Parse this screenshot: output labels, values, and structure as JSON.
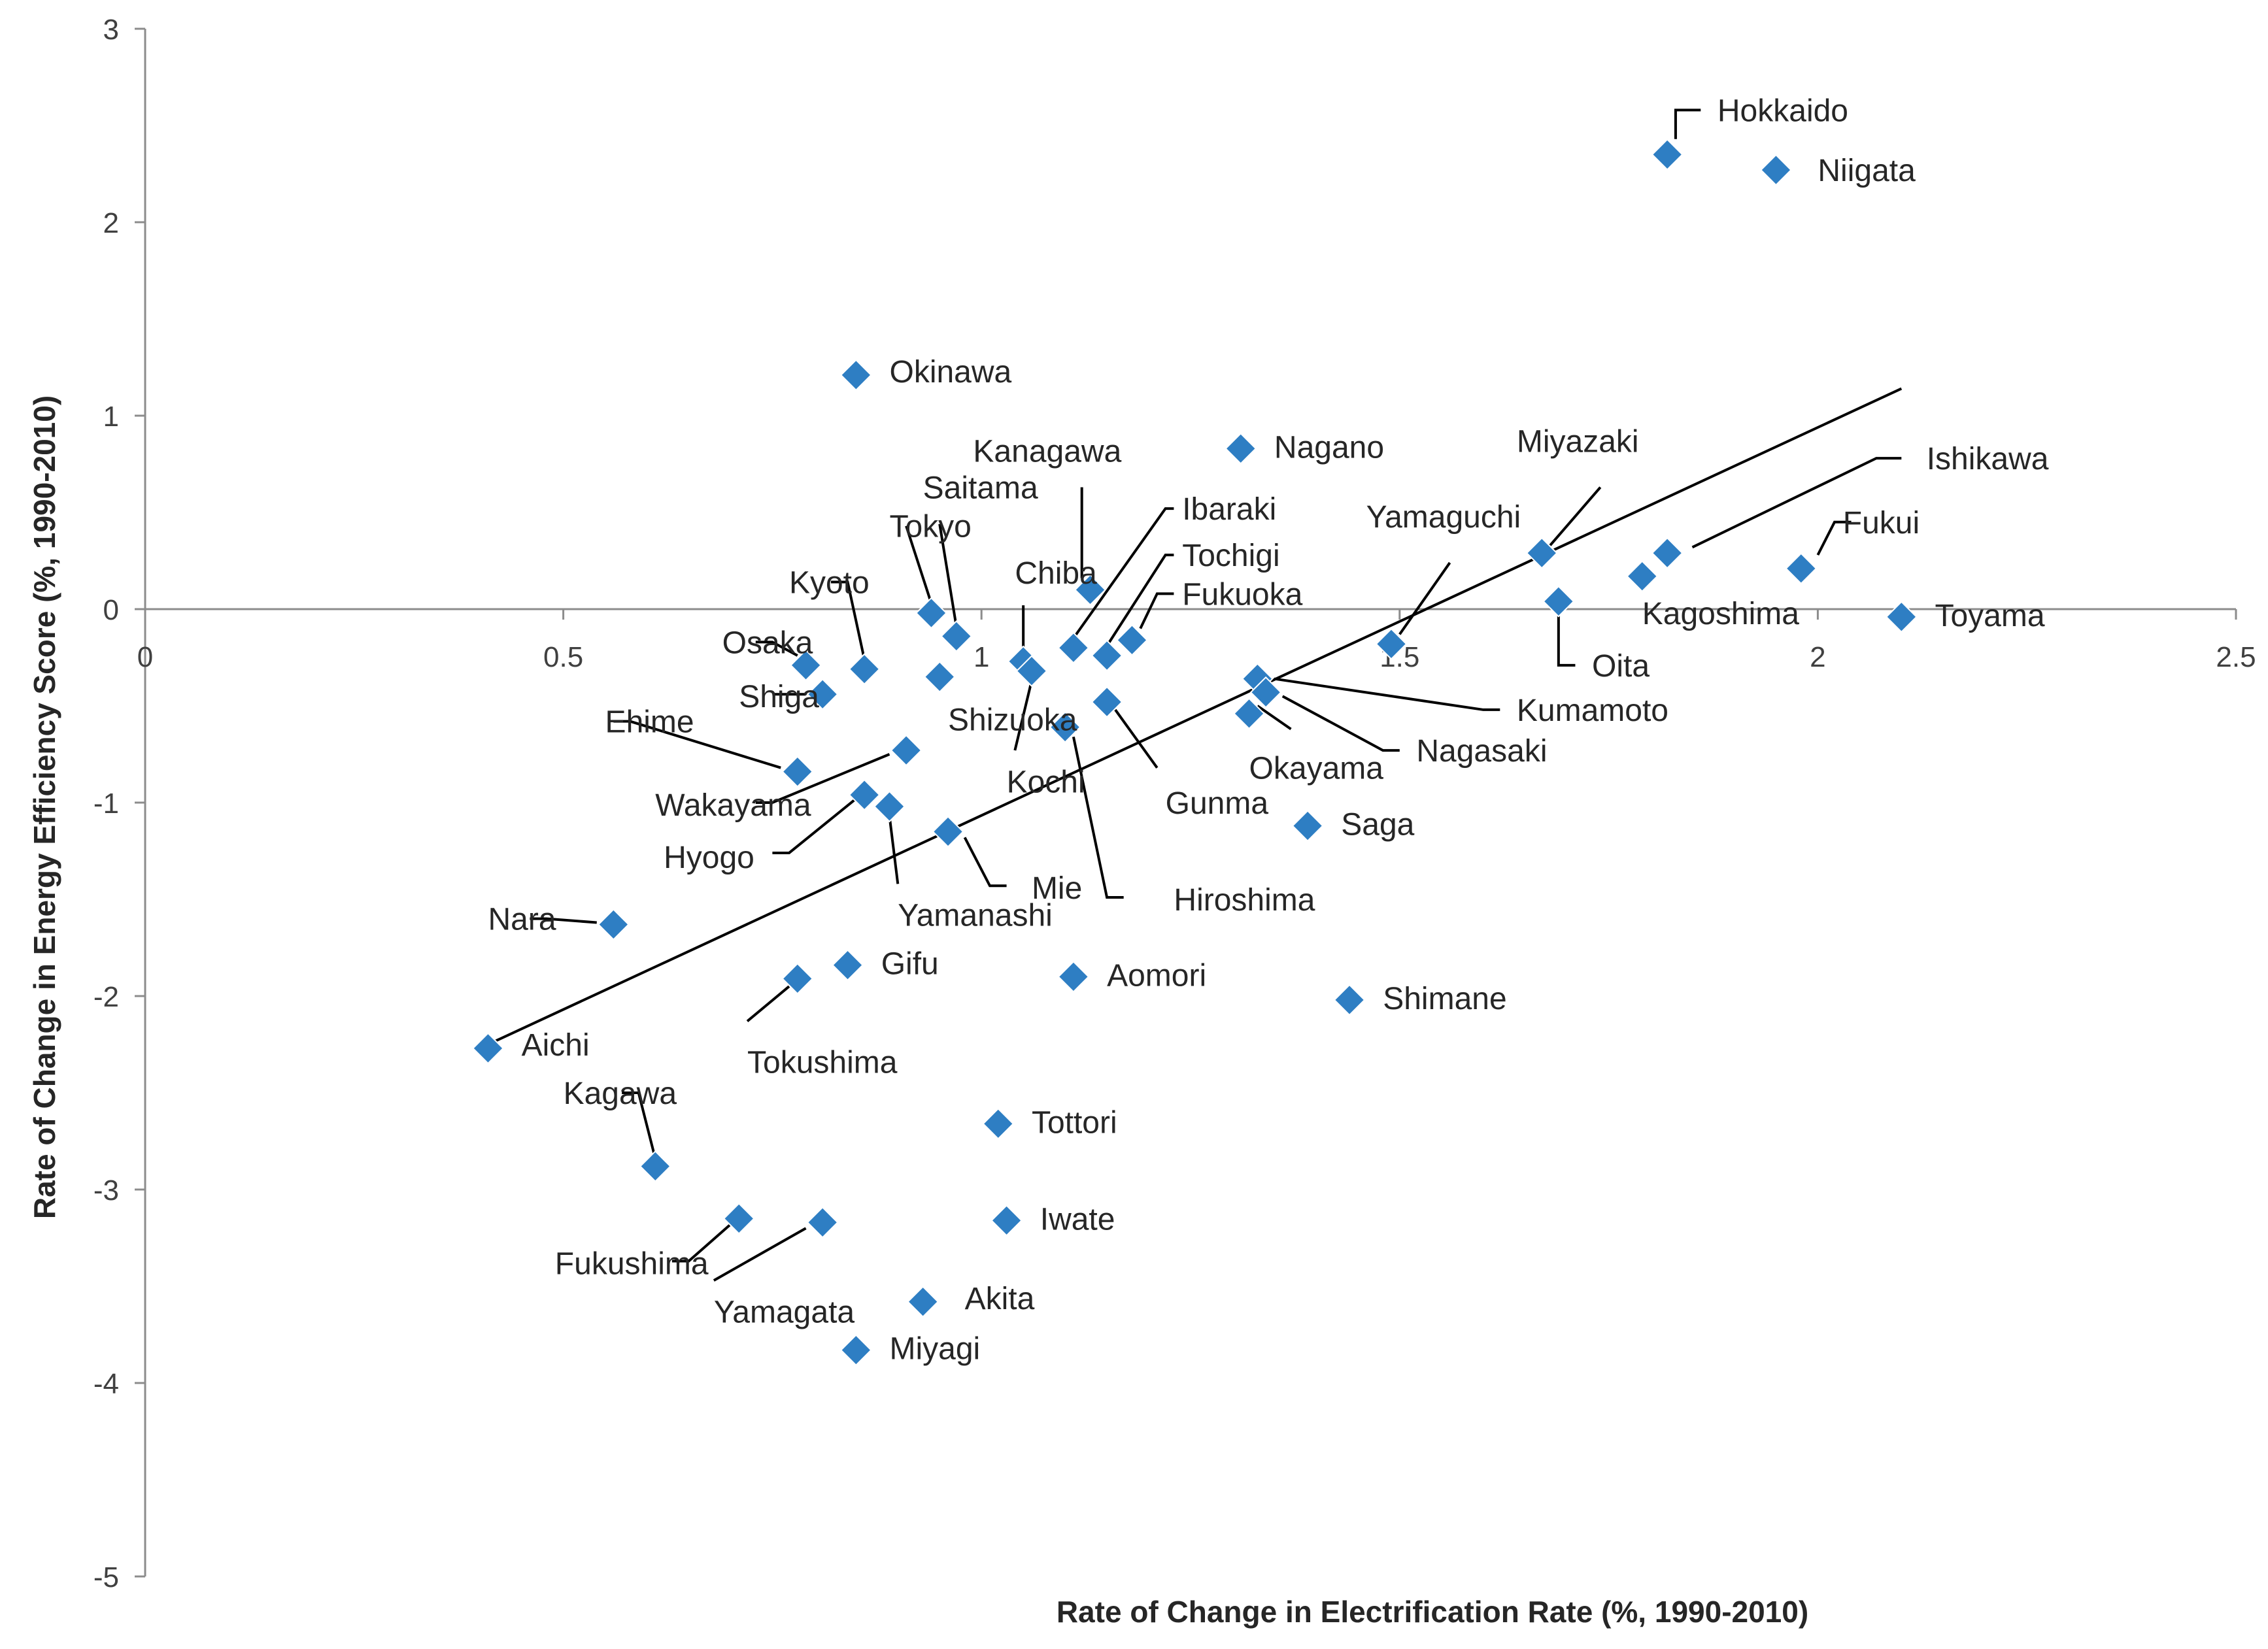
{
  "chart_data": {
    "type": "scatter",
    "title": "",
    "xlabel": "Rate of Change in Electrification Rate (%, 1990-2010)",
    "ylabel": "Rate of Change in Energy Efficiency Score (%, 1990-2010)",
    "xlim": [
      0,
      2.5
    ],
    "ylim": [
      -5,
      3
    ],
    "x_ticks": [
      {
        "value": 0,
        "label": "0"
      },
      {
        "value": 0.5,
        "label": "0.5"
      },
      {
        "value": 1,
        "label": "1"
      },
      {
        "value": 1.5,
        "label": "1.5"
      },
      {
        "value": 2,
        "label": "2"
      },
      {
        "value": 2.5,
        "label": "2.5"
      }
    ],
    "y_ticks": [
      {
        "value": 3,
        "label": "3"
      },
      {
        "value": 2,
        "label": "2"
      },
      {
        "value": 1,
        "label": "1"
      },
      {
        "value": 0,
        "label": "0"
      },
      {
        "value": -1,
        "label": "-1"
      },
      {
        "value": -2,
        "label": "-2"
      },
      {
        "value": -3,
        "label": "-3"
      },
      {
        "value": -4,
        "label": "-4"
      },
      {
        "value": -5,
        "label": "-5"
      }
    ],
    "marker_color": "#2E7EC3",
    "trendline": {
      "x": [
        0.41,
        2.1
      ],
      "y": [
        -2.25,
        1.14
      ]
    },
    "points": [
      {
        "name": "Hokkaido",
        "x": 1.82,
        "y": 2.35,
        "lx": 1.88,
        "ly": 2.58,
        "leader": [
          [
            1.83,
            2.43
          ],
          [
            1.83,
            2.58
          ],
          [
            1.86,
            2.58
          ]
        ]
      },
      {
        "name": "Niigata",
        "x": 1.95,
        "y": 2.27,
        "lx": 2.0,
        "ly": 2.27
      },
      {
        "name": "Okinawa",
        "x": 0.85,
        "y": 1.21,
        "lx": 0.89,
        "ly": 1.23
      },
      {
        "name": "Nagano",
        "x": 1.31,
        "y": 0.83,
        "lx": 1.35,
        "ly": 0.84
      },
      {
        "name": "Kanagawa",
        "x": 1.13,
        "y": 0.1,
        "lx": 0.99,
        "ly": 0.82,
        "leader": [
          [
            1.12,
            0.16
          ],
          [
            1.12,
            0.63
          ]
        ]
      },
      {
        "name": "Miyazaki",
        "x": 1.67,
        "y": 0.29,
        "lx": 1.64,
        "ly": 0.87,
        "leader": [
          [
            1.68,
            0.33
          ],
          [
            1.74,
            0.63
          ]
        ]
      },
      {
        "name": "Ishikawa",
        "x": 1.82,
        "y": 0.29,
        "lx": 2.13,
        "ly": 0.78,
        "leader": [
          [
            1.85,
            0.32
          ],
          [
            2.07,
            0.78
          ],
          [
            2.1,
            0.78
          ]
        ]
      },
      {
        "name": "Fukui",
        "x": 1.98,
        "y": 0.21,
        "lx": 2.03,
        "ly": 0.45,
        "leader": [
          [
            2.0,
            0.28
          ],
          [
            2.02,
            0.45
          ],
          [
            2.04,
            0.45
          ]
        ]
      },
      {
        "name": "Kagoshima",
        "x": 1.79,
        "y": 0.17,
        "lx": 1.79,
        "ly": -0.02
      },
      {
        "name": "Toyama",
        "x": 2.1,
        "y": -0.04,
        "lx": 2.14,
        "ly": -0.03
      },
      {
        "name": "Oita",
        "x": 1.69,
        "y": 0.04,
        "lx": 1.73,
        "ly": -0.29,
        "leader": [
          [
            1.69,
            0.0
          ],
          [
            1.69,
            -0.29
          ],
          [
            1.71,
            -0.29
          ]
        ]
      },
      {
        "name": "Yamaguchi",
        "x": 1.49,
        "y": -0.18,
        "lx": 1.46,
        "ly": 0.48,
        "leader": [
          [
            1.5,
            -0.13
          ],
          [
            1.56,
            0.24
          ]
        ]
      },
      {
        "name": "Ibaraki",
        "x": 1.11,
        "y": -0.2,
        "lx": 1.24,
        "ly": 0.52,
        "leader": [
          [
            1.11,
            -0.15
          ],
          [
            1.22,
            0.52
          ],
          [
            1.23,
            0.52
          ]
        ]
      },
      {
        "name": "Tochigi",
        "x": 1.15,
        "y": -0.24,
        "lx": 1.24,
        "ly": 0.28,
        "leader": [
          [
            1.15,
            -0.19
          ],
          [
            1.22,
            0.28
          ],
          [
            1.23,
            0.28
          ]
        ]
      },
      {
        "name": "Fukuoka",
        "x": 1.18,
        "y": -0.16,
        "lx": 1.24,
        "ly": 0.08,
        "leader": [
          [
            1.19,
            -0.1
          ],
          [
            1.21,
            0.08
          ],
          [
            1.23,
            0.08
          ]
        ]
      },
      {
        "name": "Chiba",
        "x": 1.05,
        "y": -0.27,
        "lx": 1.04,
        "ly": 0.19,
        "leader": [
          [
            1.05,
            -0.22
          ],
          [
            1.05,
            0.02
          ]
        ]
      },
      {
        "name": "Saitama",
        "x": 0.97,
        "y": -0.14,
        "lx": 0.93,
        "ly": 0.63,
        "leader": [
          [
            0.97,
            -0.09
          ],
          [
            0.95,
            0.44
          ]
        ]
      },
      {
        "name": "Tokyo",
        "x": 0.94,
        "y": -0.02,
        "lx": 0.89,
        "ly": 0.43,
        "leader": [
          [
            0.94,
            0.03
          ],
          [
            0.91,
            0.43
          ]
        ]
      },
      {
        "name": "Kyoto",
        "x": 0.86,
        "y": -0.31,
        "lx": 0.77,
        "ly": 0.14,
        "leader": [
          [
            0.86,
            -0.26
          ],
          [
            0.84,
            0.14
          ],
          [
            0.82,
            0.14
          ]
        ]
      },
      {
        "name": "Osaka",
        "x": 0.79,
        "y": -0.29,
        "lx": 0.69,
        "ly": -0.17,
        "leader": [
          [
            0.78,
            -0.24
          ],
          [
            0.75,
            -0.17
          ],
          [
            0.73,
            -0.17
          ]
        ]
      },
      {
        "name": "Shiga",
        "x": 0.81,
        "y": -0.44,
        "lx": 0.71,
        "ly": -0.45,
        "leader": [
          [
            0.79,
            -0.44
          ],
          [
            0.75,
            -0.44
          ]
        ]
      },
      {
        "name": "Shizuoka",
        "x": 0.95,
        "y": -0.35,
        "lx": 0.96,
        "ly": -0.57
      },
      {
        "name": "Kochi",
        "x": 1.06,
        "y": -0.32,
        "lx": 1.03,
        "ly": -0.89,
        "leader": [
          [
            1.06,
            -0.37
          ],
          [
            1.04,
            -0.73
          ]
        ]
      },
      {
        "name": "Ehime",
        "x": 0.78,
        "y": -0.84,
        "lx": 0.55,
        "ly": -0.58,
        "leader": [
          [
            0.76,
            -0.82
          ],
          [
            0.58,
            -0.58
          ],
          [
            0.56,
            -0.58
          ]
        ]
      },
      {
        "name": "Wakayama",
        "x": 0.91,
        "y": -0.73,
        "lx": 0.61,
        "ly": -1.01,
        "leader": [
          [
            0.89,
            -0.75
          ],
          [
            0.75,
            -1.0
          ],
          [
            0.73,
            -1.0
          ]
        ]
      },
      {
        "name": "Hyogo",
        "x": 0.86,
        "y": -0.96,
        "lx": 0.62,
        "ly": -1.28,
        "leader": [
          [
            0.85,
            -0.98
          ],
          [
            0.77,
            -1.26
          ],
          [
            0.75,
            -1.26
          ]
        ]
      },
      {
        "name": "Yamanashi",
        "x": 0.89,
        "y": -1.02,
        "lx": 0.9,
        "ly": -1.58,
        "leader": [
          [
            0.89,
            -1.07
          ],
          [
            0.9,
            -1.42
          ]
        ]
      },
      {
        "name": "Mie",
        "x": 0.96,
        "y": -1.15,
        "lx": 1.06,
        "ly": -1.44,
        "leader": [
          [
            0.98,
            -1.18
          ],
          [
            1.01,
            -1.43
          ],
          [
            1.03,
            -1.43
          ]
        ]
      },
      {
        "name": "Hiroshima",
        "x": 1.1,
        "y": -0.61,
        "lx": 1.23,
        "ly": -1.5,
        "leader": [
          [
            1.11,
            -0.66
          ],
          [
            1.15,
            -1.49
          ],
          [
            1.17,
            -1.49
          ]
        ]
      },
      {
        "name": "Gunma",
        "x": 1.15,
        "y": -0.48,
        "lx": 1.22,
        "ly": -1.0,
        "leader": [
          [
            1.16,
            -0.52
          ],
          [
            1.21,
            -0.82
          ]
        ]
      },
      {
        "name": "Kumamoto",
        "x": 1.33,
        "y": -0.36,
        "lx": 1.64,
        "ly": -0.52,
        "leader": [
          [
            1.35,
            -0.36
          ],
          [
            1.6,
            -0.52
          ],
          [
            1.62,
            -0.52
          ]
        ]
      },
      {
        "name": "Nagasaki",
        "x": 1.34,
        "y": -0.43,
        "lx": 1.52,
        "ly": -0.73,
        "leader": [
          [
            1.36,
            -0.45
          ],
          [
            1.48,
            -0.73
          ],
          [
            1.5,
            -0.73
          ]
        ]
      },
      {
        "name": "Okayama",
        "x": 1.32,
        "y": -0.54,
        "lx": 1.32,
        "ly": -0.82,
        "leader": [
          [
            1.33,
            -0.5
          ],
          [
            1.37,
            -0.62
          ]
        ]
      },
      {
        "name": "Saga",
        "x": 1.39,
        "y": -1.12,
        "lx": 1.43,
        "ly": -1.11
      },
      {
        "name": "Nara",
        "x": 0.56,
        "y": -1.63,
        "lx": 0.41,
        "ly": -1.6,
        "leader": [
          [
            0.54,
            -1.62
          ],
          [
            0.48,
            -1.6
          ],
          [
            0.46,
            -1.6
          ]
        ]
      },
      {
        "name": "Gifu",
        "x": 0.84,
        "y": -1.84,
        "lx": 0.88,
        "ly": -1.83
      },
      {
        "name": "Aomori",
        "x": 1.11,
        "y": -1.9,
        "lx": 1.15,
        "ly": -1.89
      },
      {
        "name": "Shimane",
        "x": 1.44,
        "y": -2.02,
        "lx": 1.48,
        "ly": -2.01
      },
      {
        "name": "Tokushima",
        "x": 0.78,
        "y": -1.91,
        "lx": 0.72,
        "ly": -2.34,
        "leader": [
          [
            0.77,
            -1.95
          ],
          [
            0.72,
            -2.13
          ]
        ]
      },
      {
        "name": "Aichi",
        "x": 0.41,
        "y": -2.27,
        "lx": 0.45,
        "ly": -2.25
      },
      {
        "name": "Kagawa",
        "x": 0.61,
        "y": -2.88,
        "lx": 0.5,
        "ly": -2.5,
        "leader": [
          [
            0.61,
            -2.84
          ],
          [
            0.59,
            -2.5
          ],
          [
            0.57,
            -2.5
          ]
        ]
      },
      {
        "name": "Tottori",
        "x": 1.02,
        "y": -2.66,
        "lx": 1.06,
        "ly": -2.65
      },
      {
        "name": "Iwate",
        "x": 1.03,
        "y": -3.16,
        "lx": 1.07,
        "ly": -3.15
      },
      {
        "name": "Fukushima",
        "x": 0.71,
        "y": -3.15,
        "lx": 0.49,
        "ly": -3.38,
        "leader": [
          [
            0.7,
            -3.18
          ],
          [
            0.65,
            -3.37
          ],
          [
            0.63,
            -3.37
          ]
        ]
      },
      {
        "name": "Yamagata",
        "x": 0.81,
        "y": -3.17,
        "lx": 0.68,
        "ly": -3.63,
        "leader": [
          [
            0.79,
            -3.2
          ],
          [
            0.68,
            -3.47
          ]
        ]
      },
      {
        "name": "Akita",
        "x": 0.93,
        "y": -3.58,
        "lx": 0.98,
        "ly": -3.56
      },
      {
        "name": "Miyagi",
        "x": 0.85,
        "y": -3.83,
        "lx": 0.89,
        "ly": -3.82
      }
    ]
  }
}
